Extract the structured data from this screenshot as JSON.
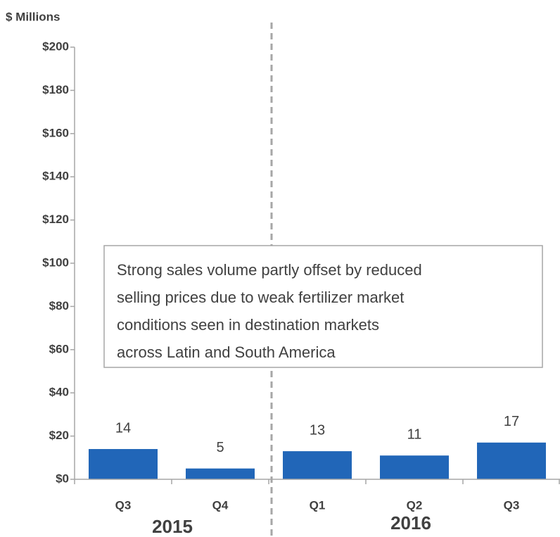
{
  "chart_data": {
    "type": "bar",
    "y_label": "$ Millions",
    "categories": [
      "Q3",
      "Q4",
      "Q1",
      "Q2",
      "Q3"
    ],
    "values": [
      14,
      5,
      13,
      11,
      17
    ],
    "color": "#2166b8",
    "ylim": [
      0,
      200
    ],
    "yticks": [
      {
        "value": 0,
        "label": "$0"
      },
      {
        "value": 20,
        "label": "$20"
      },
      {
        "value": 40,
        "label": "$40"
      },
      {
        "value": 60,
        "label": "$60"
      },
      {
        "value": 80,
        "label": "$80"
      },
      {
        "value": 100,
        "label": "$100"
      },
      {
        "value": 120,
        "label": "$120"
      },
      {
        "value": 140,
        "label": "$140"
      },
      {
        "value": 160,
        "label": "$160"
      },
      {
        "value": 180,
        "label": "$180"
      },
      {
        "value": 200,
        "label": "$200"
      }
    ],
    "group_labels": [
      "2015",
      "2016"
    ],
    "annotation": [
      "Strong sales volume partly offset by reduced",
      "selling prices due to weak fertilizer market",
      "conditions seen in destination markets",
      "across Latin and South America"
    ]
  }
}
